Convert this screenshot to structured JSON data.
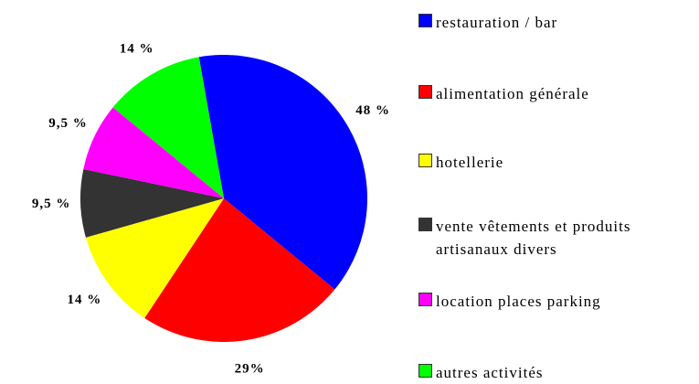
{
  "chart_data": {
    "type": "pie",
    "categories": [
      "restauration / bar",
      "alimentation générale",
      "hotellerie",
      "vente vêtements et produits artisanaux divers",
      "location places parking",
      "autres activités"
    ],
    "values": [
      48,
      29,
      14,
      9.5,
      9.5,
      14
    ],
    "value_labels": [
      "48 %",
      "29%",
      "14 %",
      "9,5 %",
      "9,5 %",
      "14 %"
    ],
    "colors": [
      "#0000ff",
      "#ff0000",
      "#ffff00",
      "#333333",
      "#ff00ff",
      "#00ff00"
    ]
  }
}
